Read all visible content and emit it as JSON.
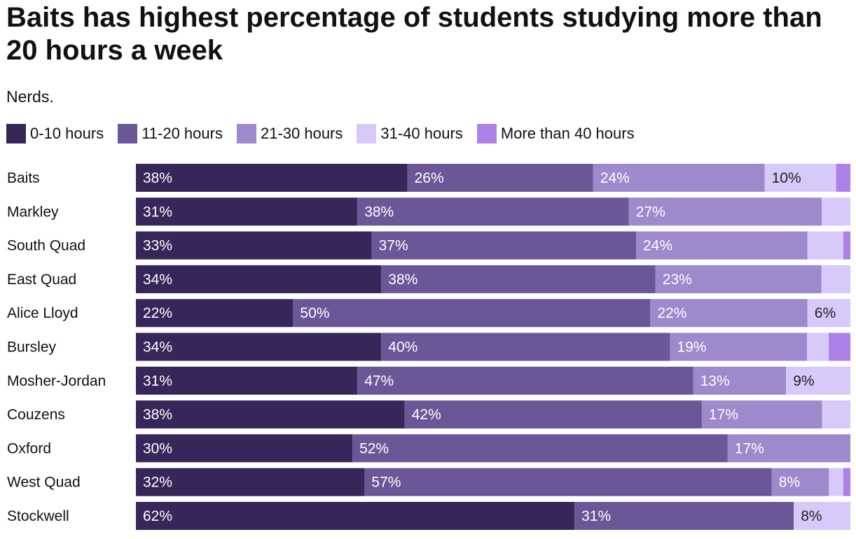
{
  "chart_data": {
    "type": "bar",
    "orientation": "horizontal",
    "stacked": true,
    "title": "Baits has highest percentage of students studying more than 20 hours a week",
    "subtitle": "Nerds.",
    "categories": [
      "Baits",
      "Markley",
      "South Quad",
      "East Quad",
      "Alice Lloyd",
      "Bursley",
      "Mosher-Jordan",
      "Couzens",
      "Oxford",
      "West Quad",
      "Stockwell"
    ],
    "series": [
      {
        "name": "0-10 hours",
        "color": "#362659",
        "values": [
          38,
          31,
          33,
          34,
          22,
          34,
          31,
          38,
          30,
          32,
          62
        ]
      },
      {
        "name": "11-20 hours",
        "color": "#6b5798",
        "values": [
          26,
          38,
          37,
          38,
          50,
          40,
          47,
          42,
          52,
          57,
          31
        ]
      },
      {
        "name": "21-30 hours",
        "color": "#9d89cb",
        "values": [
          24,
          27,
          24,
          23,
          22,
          19,
          13,
          17,
          17,
          8,
          0
        ]
      },
      {
        "name": "31-40 hours",
        "color": "#d7cafb",
        "values": [
          10,
          4,
          5,
          4,
          6,
          3,
          9,
          4,
          0,
          2,
          8
        ]
      },
      {
        "name": "More than 40 hours",
        "color": "#ab81e8",
        "values": [
          2,
          0,
          1,
          0,
          0,
          3,
          0,
          0,
          0,
          1,
          0
        ]
      }
    ],
    "value_suffix": "%",
    "legend_position": "top-left",
    "grid": false
  }
}
